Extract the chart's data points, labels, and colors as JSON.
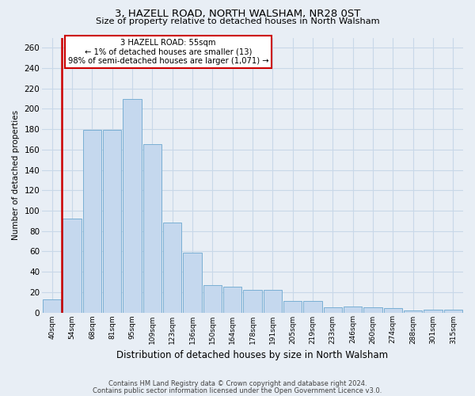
{
  "title1": "3, HAZELL ROAD, NORTH WALSHAM, NR28 0ST",
  "title2": "Size of property relative to detached houses in North Walsham",
  "xlabel": "Distribution of detached houses by size in North Walsham",
  "ylabel": "Number of detached properties",
  "categories": [
    "40sqm",
    "54sqm",
    "68sqm",
    "81sqm",
    "95sqm",
    "109sqm",
    "123sqm",
    "136sqm",
    "150sqm",
    "164sqm",
    "178sqm",
    "191sqm",
    "205sqm",
    "219sqm",
    "233sqm",
    "246sqm",
    "260sqm",
    "274sqm",
    "288sqm",
    "301sqm",
    "315sqm"
  ],
  "values": [
    13,
    92,
    179,
    179,
    210,
    165,
    88,
    59,
    27,
    25,
    22,
    22,
    11,
    11,
    5,
    6,
    5,
    4,
    2,
    3,
    3
  ],
  "bar_color": "#c5d8ee",
  "bar_edge_color": "#7aafd4",
  "highlight_index": 1,
  "highlight_color": "#cc0000",
  "annotation_text": "3 HAZELL ROAD: 55sqm\n← 1% of detached houses are smaller (13)\n98% of semi-detached houses are larger (1,071) →",
  "annotation_box_color": "#ffffff",
  "annotation_box_edge_color": "#cc0000",
  "ylim": [
    0,
    270
  ],
  "yticks": [
    0,
    20,
    40,
    60,
    80,
    100,
    120,
    140,
    160,
    180,
    200,
    220,
    240,
    260
  ],
  "grid_color": "#c8d8e8",
  "footer1": "Contains HM Land Registry data © Crown copyright and database right 2024.",
  "footer2": "Contains public sector information licensed under the Open Government Licence v3.0.",
  "bg_color": "#e8eef5"
}
